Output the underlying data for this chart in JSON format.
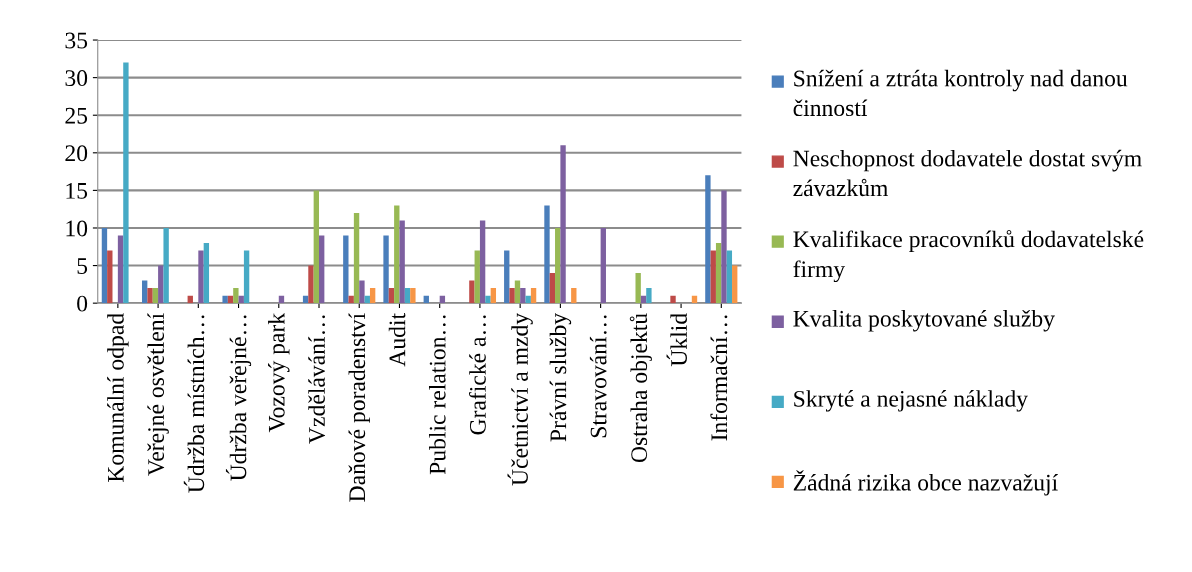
{
  "chart_data": {
    "type": "bar",
    "categories": [
      "Komunální odpad",
      "Veřejné osvětlení",
      "Údržba místních…",
      "Údržba veřejné…",
      "Vozový park",
      "Vzdělávání…",
      "Daňové poradenství",
      "Audit",
      "Public relation…",
      "Grafické a…",
      "Účetnictví a mzdy",
      "Právní služby",
      "Stravování…",
      "Ostraha objektů",
      "Úklid",
      "Informační…"
    ],
    "series": [
      {
        "name": "Snížení a ztráta kontroly nad danou činností",
        "color": "#4a7ebb",
        "values": [
          10,
          3,
          0,
          1,
          0,
          1,
          9,
          9,
          1,
          0,
          7,
          13,
          0,
          0,
          0,
          17
        ]
      },
      {
        "name": "Neschopnost dodavatele dostat svým závazkům",
        "color": "#be4b48",
        "values": [
          7,
          2,
          1,
          1,
          0,
          5,
          1,
          2,
          0,
          3,
          2,
          4,
          0,
          0,
          1,
          7
        ]
      },
      {
        "name": "Kvalifikace pracovníků dodavatelské firmy",
        "color": "#98b954",
        "values": [
          0,
          2,
          0,
          2,
          0,
          15,
          12,
          13,
          0,
          7,
          3,
          10,
          0,
          4,
          0,
          8
        ]
      },
      {
        "name": "Kvalita poskytované služby",
        "color": "#7d60a0",
        "values": [
          9,
          5,
          7,
          1,
          1,
          9,
          3,
          11,
          1,
          11,
          2,
          21,
          10,
          1,
          0,
          15
        ]
      },
      {
        "name": "Skryté a nejasné náklady",
        "color": "#46aac5",
        "values": [
          32,
          10,
          8,
          7,
          0,
          0,
          1,
          2,
          0,
          1,
          1,
          0,
          0,
          2,
          0,
          7
        ]
      },
      {
        "name": "Žádná rizika obce nazvažují",
        "color": "#f79646",
        "values": [
          0,
          0,
          0,
          0,
          0,
          0,
          2,
          2,
          0,
          2,
          2,
          2,
          0,
          0,
          1,
          5
        ]
      }
    ],
    "ylim": [
      0,
      35
    ],
    "yticks": [
      0,
      5,
      10,
      15,
      20,
      25,
      30,
      35
    ],
    "grid": "y",
    "legend": "right"
  }
}
